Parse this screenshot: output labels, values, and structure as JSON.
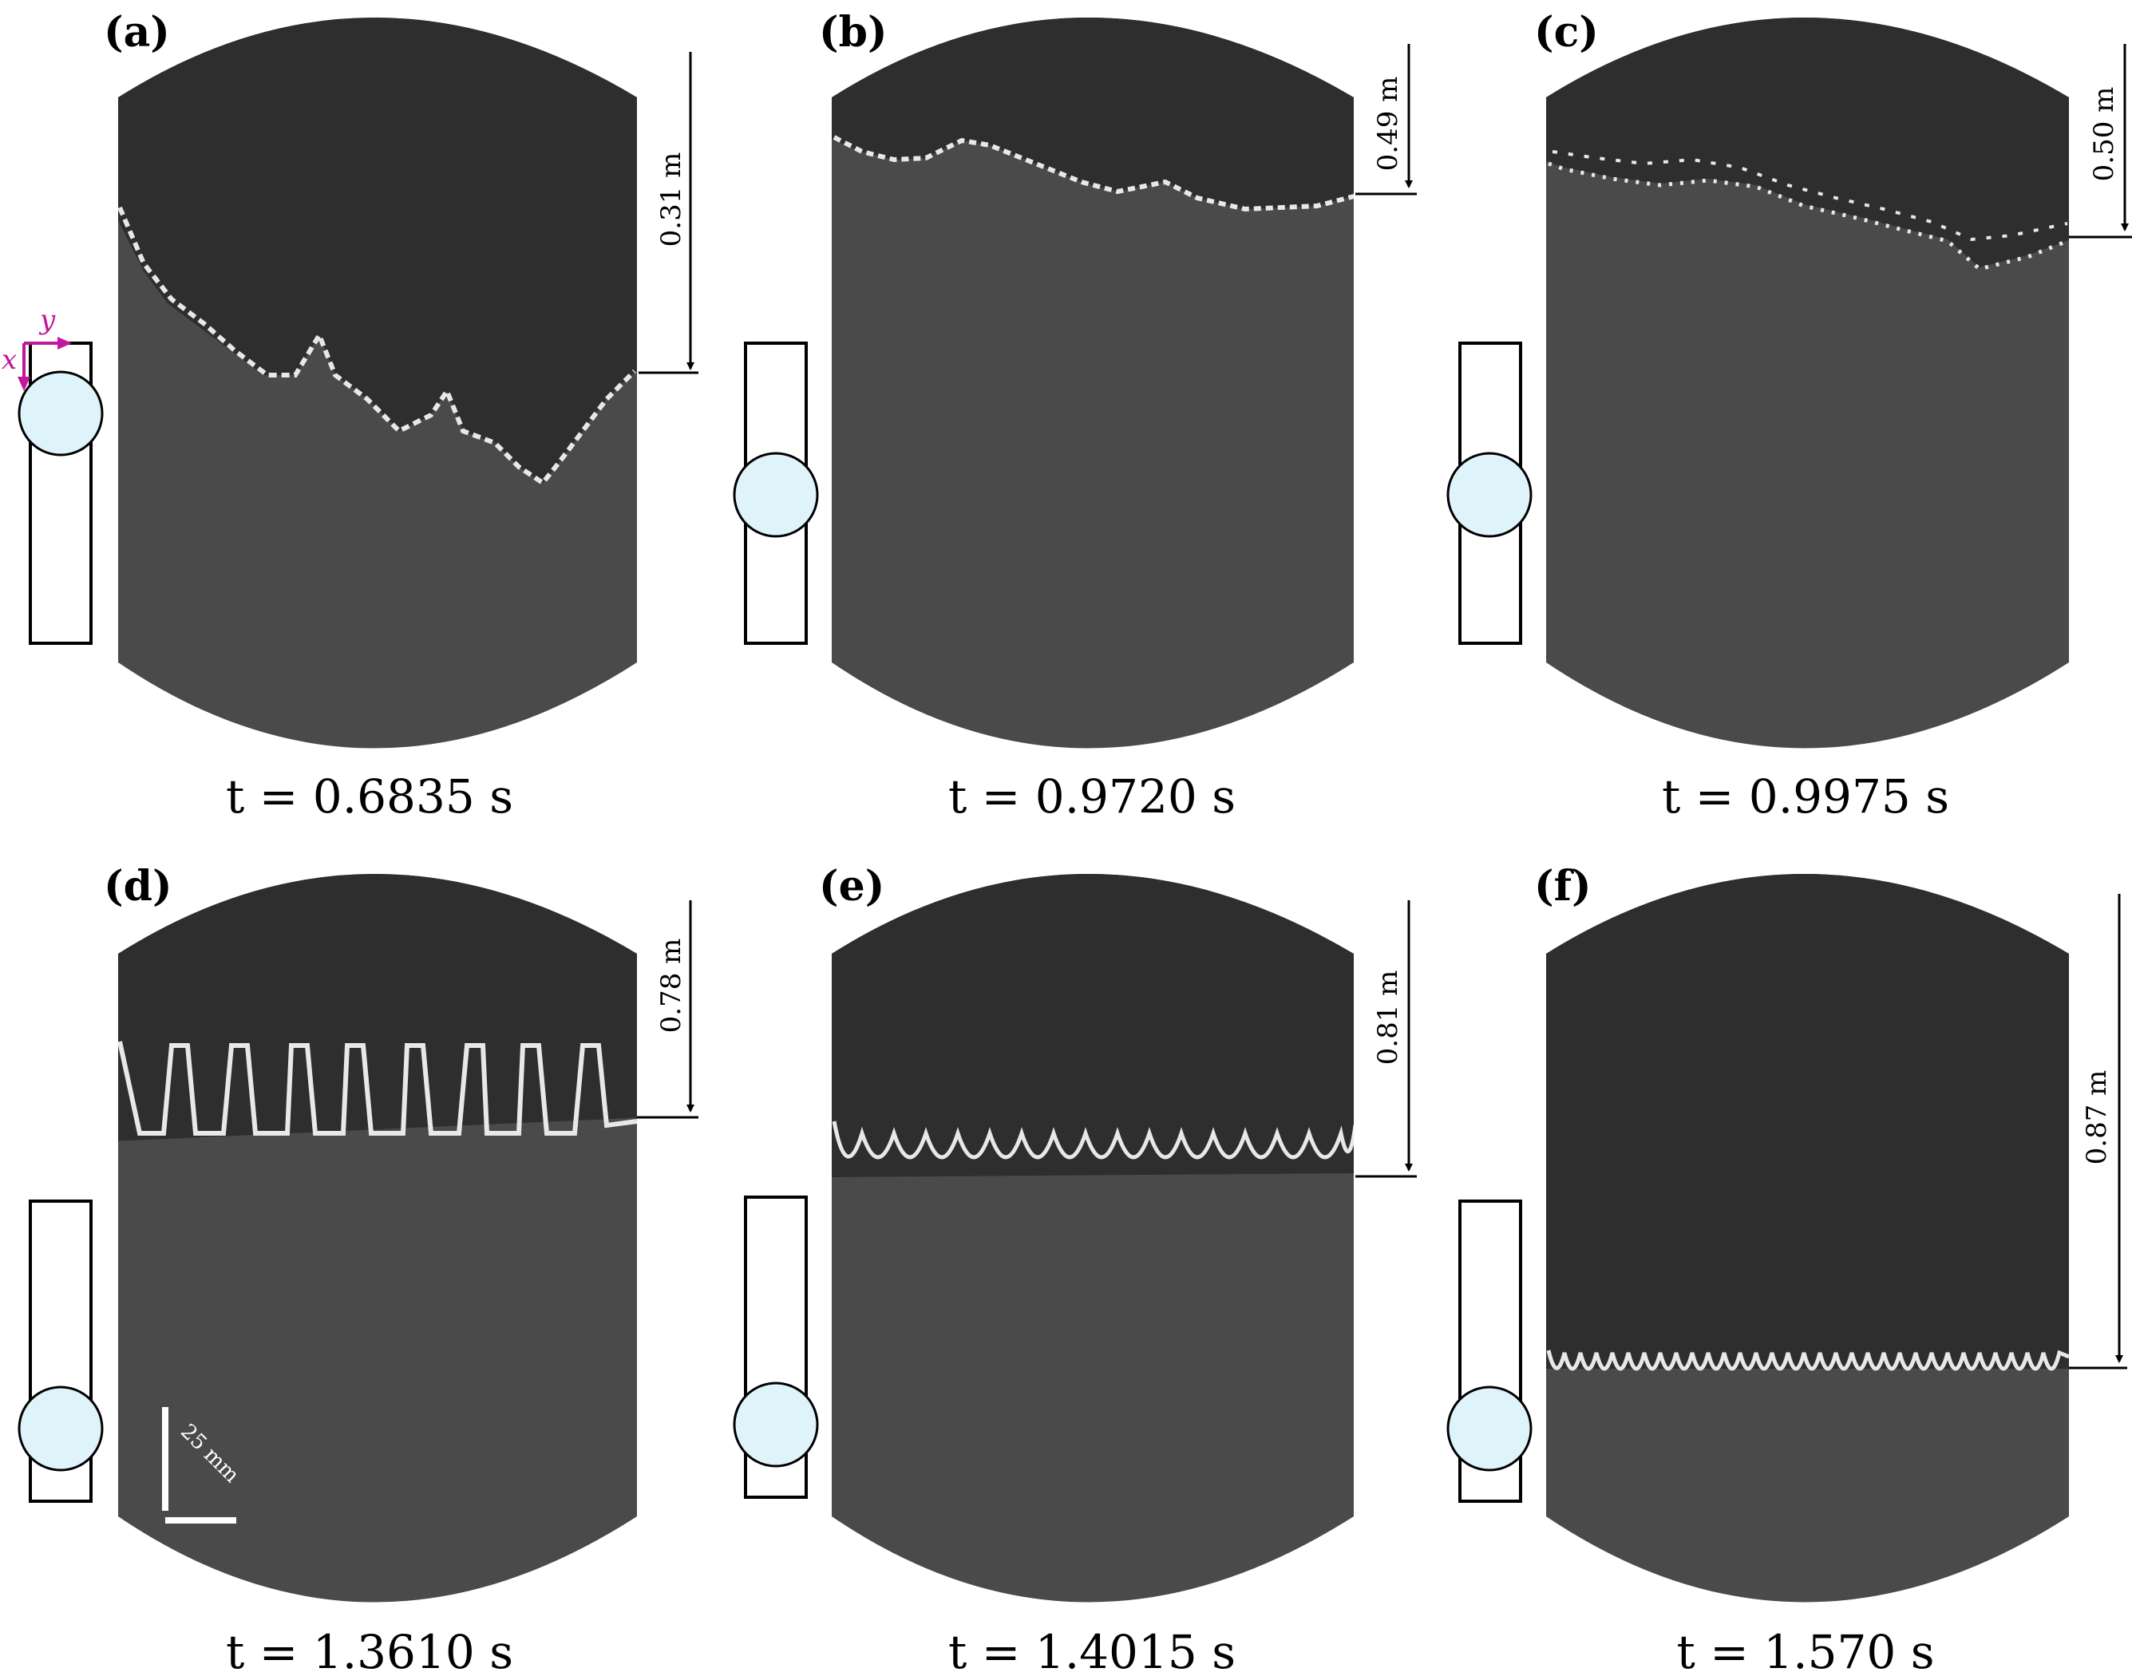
{
  "figure": {
    "colors": {
      "upper_fluid": "#2e2e2e",
      "lower_fluid": "#4a4a4a",
      "interface": "#e8e8e8",
      "probe_fill": "#dff3fb",
      "axis_marker": "#c0179b",
      "annotation": "#000000"
    },
    "panels": [
      {
        "label": "(a)",
        "time": "t = 0.6835 s",
        "depth_label": "0.31 m",
        "depth_m": 0.31,
        "probe_position": "upper"
      },
      {
        "label": "(b)",
        "time": "t = 0.9720 s",
        "depth_label": "0.49 m",
        "depth_m": 0.49,
        "probe_position": "middle"
      },
      {
        "label": "(c)",
        "time": "t = 0.9975 s",
        "depth_label": "0.50 m",
        "depth_m": 0.5,
        "probe_position": "middle"
      },
      {
        "label": "(d)",
        "time": "t = 1.3610 s",
        "depth_label": "0.78 m",
        "depth_m": 0.78,
        "probe_position": "lower"
      },
      {
        "label": "(e)",
        "time": "t = 1.4015 s",
        "depth_label": "0.81 m",
        "depth_m": 0.81,
        "probe_position": "lower"
      },
      {
        "label": "(f)",
        "time": "t = 1.570 s",
        "depth_label": "0.87 m",
        "depth_m": 0.87,
        "probe_position": "lower"
      }
    ],
    "axes": {
      "x_label": "x",
      "y_label": "y"
    },
    "scale_bar": {
      "label": "25 mm"
    }
  }
}
